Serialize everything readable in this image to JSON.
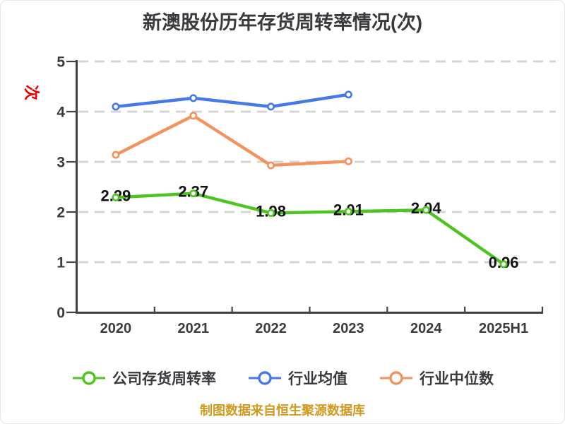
{
  "title": "新澳股份历年存货周转率情况(次)",
  "y_axis_unit": "次",
  "footer": "制图数据来自恒生聚源数据库",
  "colors": {
    "background": "#ffffff",
    "title_text": "#3a3a3e",
    "axis": "#404046",
    "grid": "#d4d4d4",
    "tick_label": "#3b3b40",
    "value_label": "#121212",
    "y_unit_red": "#e60000",
    "footer_gold": "#cf9a1e",
    "company_green": "#4ec41f",
    "industry_mean_blue": "#4678e8",
    "industry_median_orange": "#f5915c"
  },
  "chart_data": {
    "type": "line",
    "title": "新澳股份历年存货周转率情况(次)",
    "categories": [
      "2020",
      "2021",
      "2022",
      "2023",
      "2024",
      "2025H1"
    ],
    "series": [
      {
        "name": "公司存货周转率",
        "color": "#4ec41f",
        "values": [
          2.29,
          2.37,
          1.98,
          2.01,
          2.04,
          0.96
        ],
        "point_labels": [
          "2.29",
          "2.37",
          "1.98",
          "2.01",
          "2.04",
          "0.96"
        ]
      },
      {
        "name": "行业均值",
        "color": "#4678e8",
        "values": [
          4.1,
          4.27,
          4.1,
          4.34
        ]
      },
      {
        "name": "行业中位数",
        "color": "#f5915c",
        "values": [
          3.14,
          3.92,
          2.93,
          3.01
        ]
      }
    ],
    "ylabel": "次",
    "ylim": [
      0,
      5
    ],
    "yticks": [
      0,
      1,
      2,
      3,
      4,
      5
    ],
    "grid": "horizontal-dashed",
    "legend_position": "bottom",
    "marker": "circle-white-fill"
  },
  "legend": {
    "items": [
      {
        "label": "公司存货周转率",
        "color": "#4ec41f"
      },
      {
        "label": "行业均值",
        "color": "#4678e8"
      },
      {
        "label": "行业中位数",
        "color": "#f5915c"
      }
    ]
  }
}
